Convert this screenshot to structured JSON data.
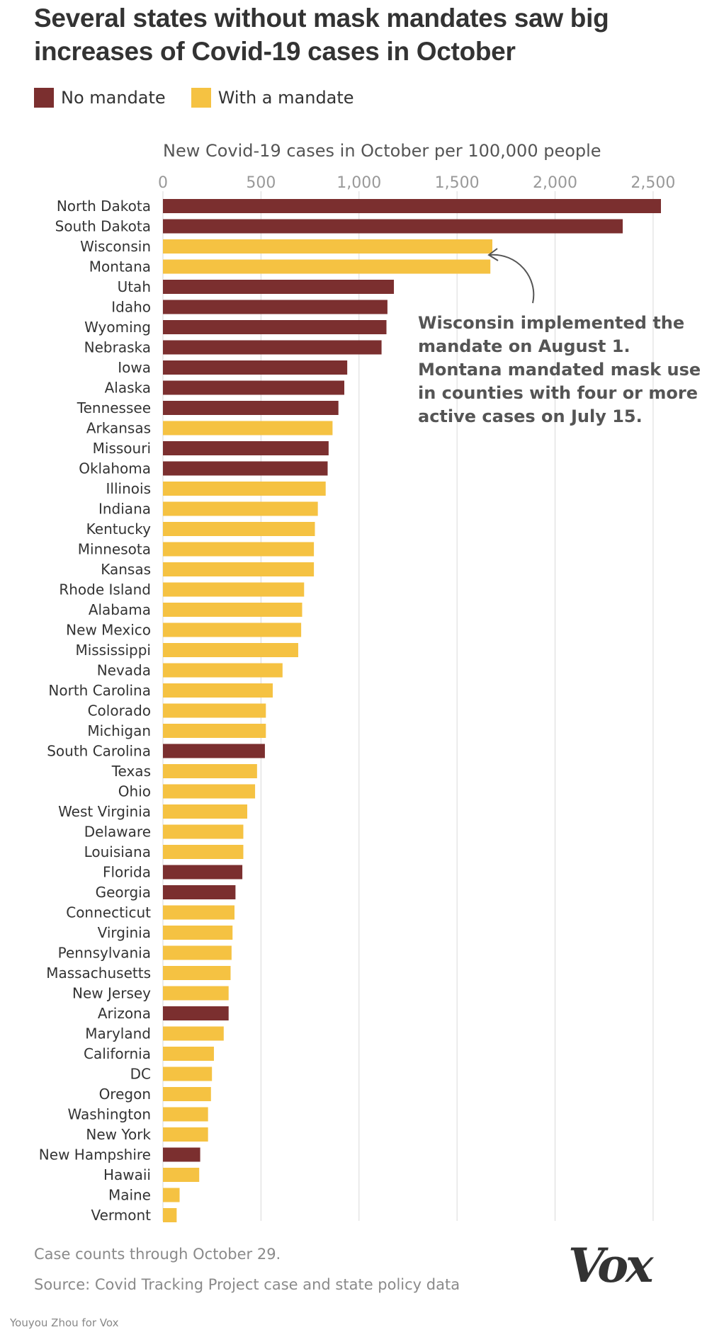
{
  "title": "Several states without mask mandates saw big increases of Covid-19 cases in October",
  "legend": [
    {
      "label": "No mandate",
      "color": "#7b2f2f"
    },
    {
      "label": "With a mandate",
      "color": "#f5c242"
    }
  ],
  "annotation": {
    "lines": [
      "Wisconsin implemented the",
      "mandate on August 1.",
      "Montana mandated mask use",
      "in counties with four or more",
      "active cases on July 15."
    ]
  },
  "footer": {
    "note": "Case counts through October 29.",
    "source": "Source: Covid Tracking Project case and state policy data"
  },
  "logo": "Vox",
  "credit": "Youyou Zhou for Vox",
  "chart_data": {
    "type": "bar",
    "orientation": "horizontal",
    "title": "New Covid-19 cases in October per 100,000 people",
    "xlim": [
      0,
      2540
    ],
    "xticks": [
      0,
      500,
      1000,
      1500,
      2000,
      2500
    ],
    "xtick_labels": [
      "0",
      "500",
      "1,000",
      "1,500",
      "2,000",
      "2,500"
    ],
    "categories": [
      "North Dakota",
      "South Dakota",
      "Wisconsin",
      "Montana",
      "Utah",
      "Idaho",
      "Wyoming",
      "Nebraska",
      "Iowa",
      "Alaska",
      "Tennessee",
      "Arkansas",
      "Missouri",
      "Oklahoma",
      "Illinois",
      "Indiana",
      "Kentucky",
      "Minnesota",
      "Kansas",
      "Rhode Island",
      "Alabama",
      "New Mexico",
      "Mississippi",
      "Nevada",
      "North Carolina",
      "Colorado",
      "Michigan",
      "South Carolina",
      "Texas",
      "Ohio",
      "West Virginia",
      "Delaware",
      "Louisiana",
      "Florida",
      "Georgia",
      "Connecticut",
      "Virginia",
      "Pennsylvania",
      "Massachusetts",
      "New Jersey",
      "Arizona",
      "Maryland",
      "California",
      "DC",
      "Oregon",
      "Washington",
      "New York",
      "New Hampshire",
      "Hawaii",
      "Maine",
      "Vermont"
    ],
    "values": [
      2540,
      2345,
      1680,
      1670,
      1178,
      1145,
      1140,
      1115,
      940,
      925,
      895,
      865,
      845,
      840,
      830,
      790,
      775,
      770,
      770,
      720,
      710,
      705,
      690,
      610,
      560,
      525,
      525,
      520,
      480,
      470,
      430,
      410,
      410,
      405,
      370,
      365,
      355,
      350,
      345,
      335,
      335,
      310,
      260,
      250,
      245,
      230,
      230,
      190,
      185,
      85,
      70
    ],
    "mandate": [
      "No",
      "No",
      "Yes",
      "Yes",
      "No",
      "No",
      "No",
      "No",
      "No",
      "No",
      "No",
      "Yes",
      "No",
      "No",
      "Yes",
      "Yes",
      "Yes",
      "Yes",
      "Yes",
      "Yes",
      "Yes",
      "Yes",
      "Yes",
      "Yes",
      "Yes",
      "Yes",
      "Yes",
      "No",
      "Yes",
      "Yes",
      "Yes",
      "Yes",
      "Yes",
      "No",
      "No",
      "Yes",
      "Yes",
      "Yes",
      "Yes",
      "Yes",
      "No",
      "Yes",
      "Yes",
      "Yes",
      "Yes",
      "Yes",
      "Yes",
      "No",
      "Yes",
      "Yes",
      "Yes"
    ]
  }
}
